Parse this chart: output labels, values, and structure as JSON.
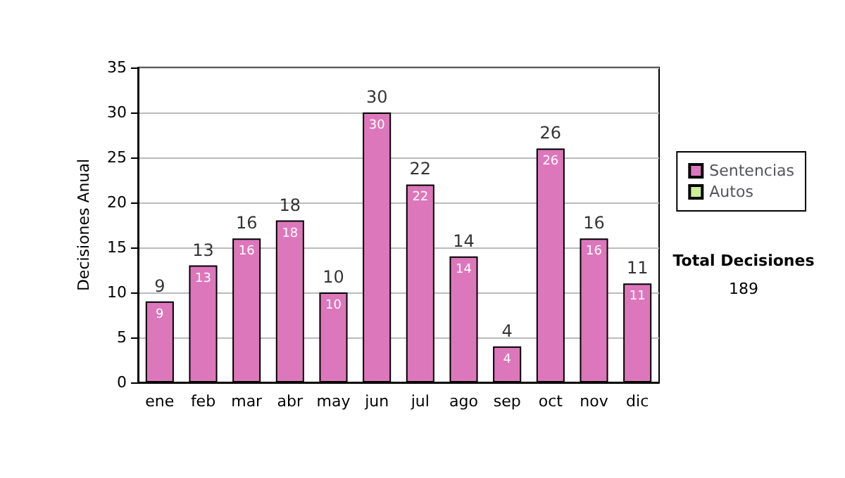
{
  "chart_data": {
    "type": "bar",
    "stacked": true,
    "ylabel": "Decisiones Anual",
    "categories": [
      "ene",
      "feb",
      "mar",
      "abr",
      "may",
      "jun",
      "jul",
      "ago",
      "sep",
      "oct",
      "nov",
      "dic"
    ],
    "series": [
      {
        "name": "Sentencias",
        "color": "#dd77bb",
        "values": [
          9,
          13,
          16,
          18,
          10,
          30,
          22,
          14,
          4,
          26,
          16,
          11
        ],
        "value_labels": [
          "9",
          "13",
          "16",
          "18",
          "10",
          "30",
          "22",
          "14",
          "4",
          "26",
          "16",
          "11"
        ]
      },
      {
        "name": "Autos",
        "color": "#ccee99",
        "values": [
          null,
          null,
          null,
          null,
          null,
          null,
          null,
          null,
          null,
          null,
          null,
          null
        ]
      }
    ],
    "totals": [
      "9",
      "13",
      "16",
      "18",
      "10",
      "30",
      "22",
      "14",
      "4",
      "26",
      "16",
      "11"
    ],
    "ylim": [
      0,
      35
    ],
    "yticks": [
      0,
      5,
      10,
      15,
      20,
      25,
      30,
      35
    ],
    "grid": "y",
    "legend": "right",
    "annotations": [
      "Total Decisiones",
      "189"
    ]
  }
}
